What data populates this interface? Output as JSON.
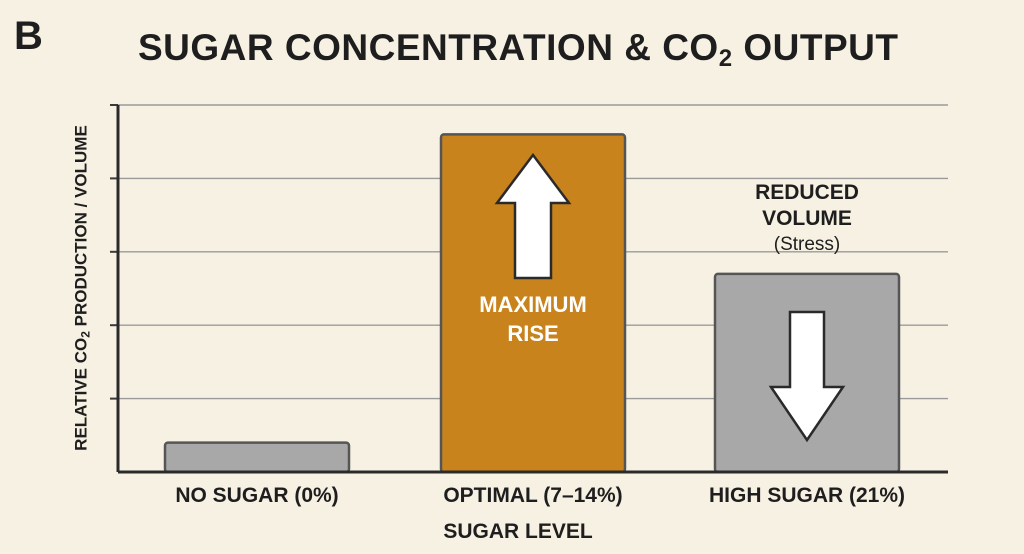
{
  "panel_letter": "B",
  "chart_data": {
    "type": "bar",
    "title_main": "SUGAR CONCENTRATION & CO",
    "title_sub": "2",
    "title_end": " OUTPUT",
    "ylabel_main": "RELATIVE CO",
    "ylabel_sub": "2",
    "ylabel_end": " PRODUCTION / VOLUME",
    "xlabel": "SUGAR LEVEL",
    "categories": [
      "NO SUGAR (0%)",
      "OPTIMAL (7–14%)",
      "HIGH SUGAR (21%)"
    ],
    "values": [
      0.4,
      4.6,
      2.7
    ],
    "ylim": [
      0,
      5
    ],
    "grid": true,
    "colors": [
      "#a8a8a8",
      "#c8831c",
      "#a8a8a8"
    ],
    "annotations": {
      "optimal": {
        "line1": "MAXIMUM",
        "line2": "RISE",
        "arrow": "up"
      },
      "high": {
        "line1": "REDUCED",
        "line2": "VOLUME",
        "line3": "(Stress)",
        "arrow": "down"
      }
    }
  }
}
